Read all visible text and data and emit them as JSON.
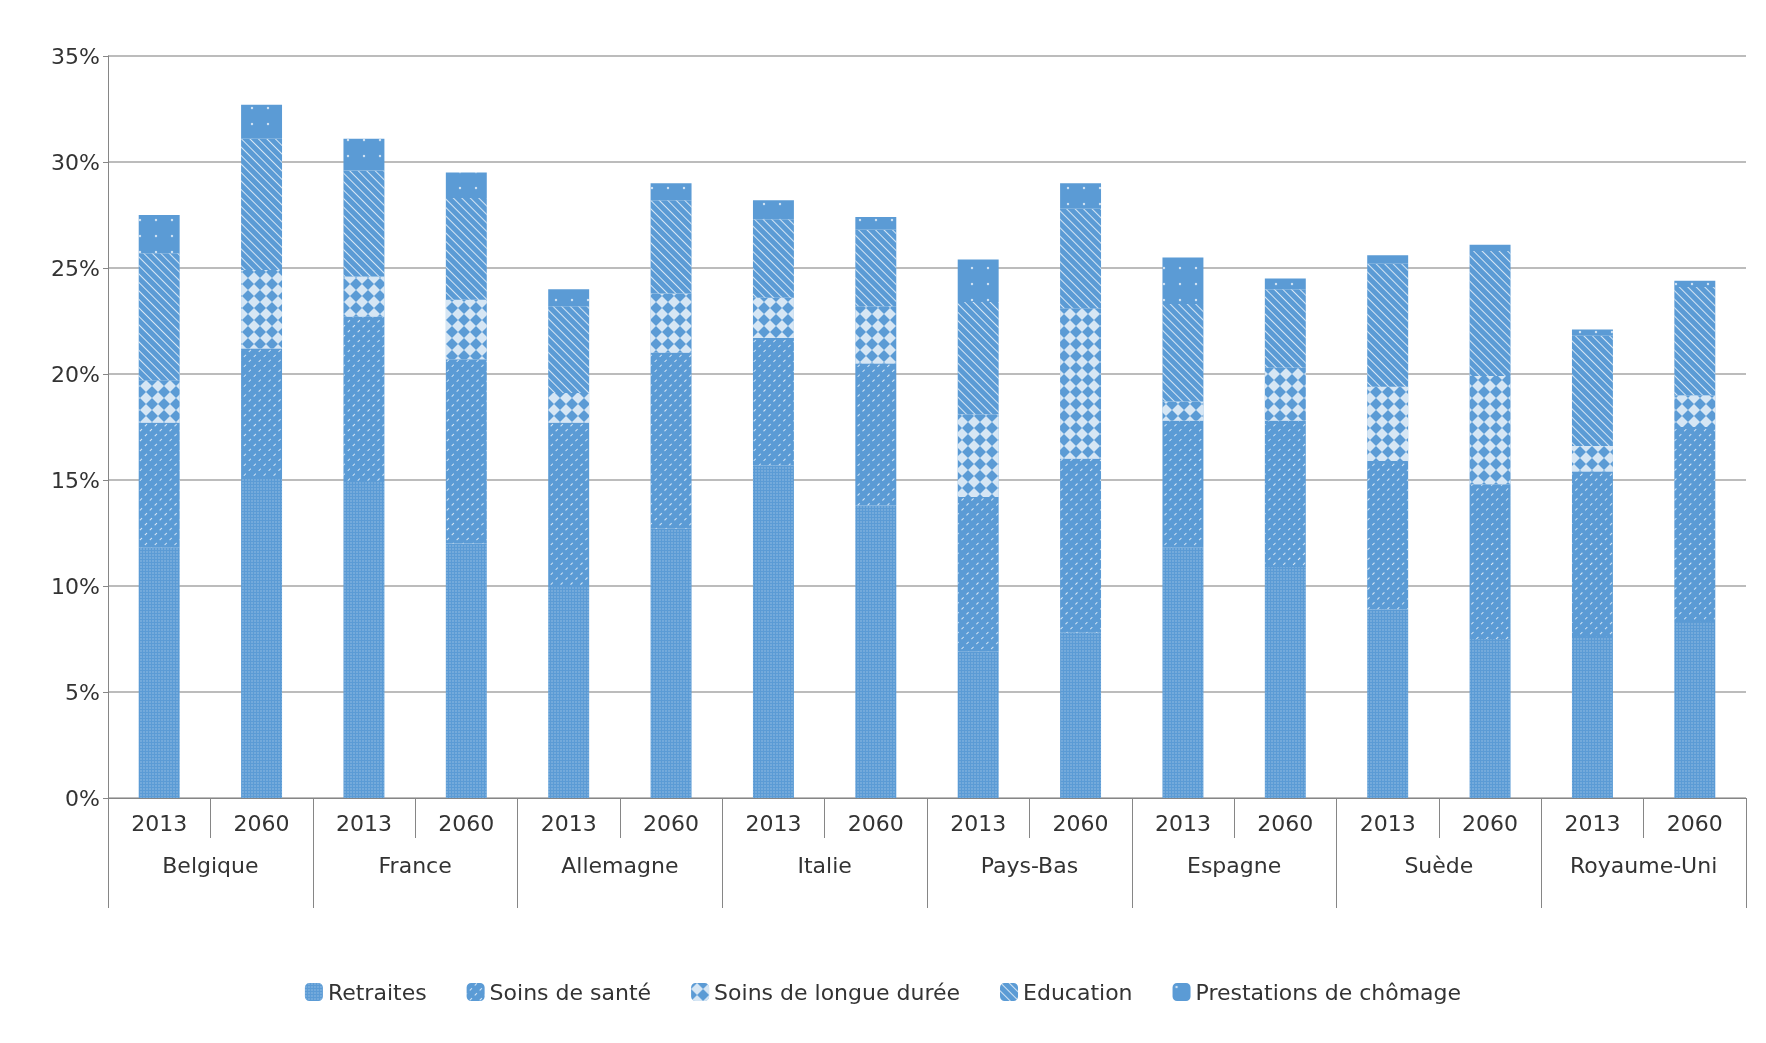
{
  "chart_data": {
    "type": "bar",
    "stacked": true,
    "categories": [
      "2013",
      "2060",
      "2013",
      "2060",
      "2013",
      "2060",
      "2013",
      "2060",
      "2013",
      "2060",
      "2013",
      "2060",
      "2013",
      "2060",
      "2013",
      "2060"
    ],
    "annotations": [
      "Belgique",
      "France",
      "Allemagne",
      "Italie",
      "Pays-Bas",
      "Espagne",
      "Suède",
      "Royaume-Uni"
    ],
    "series": [
      {
        "name": "Retraites",
        "color": "#5b9bd5",
        "values": [
          11.8,
          15.1,
          14.9,
          12.0,
          10.0,
          12.7,
          15.7,
          13.8,
          6.9,
          7.8,
          11.8,
          10.9,
          8.9,
          7.5,
          7.6,
          8.3
        ]
      },
      {
        "name": "Soins de santé",
        "color": "#5b9bd5",
        "values": [
          5.9,
          6.1,
          7.8,
          8.7,
          7.7,
          8.3,
          6.0,
          6.7,
          7.3,
          8.2,
          6.0,
          6.9,
          7.0,
          7.3,
          7.8,
          9.2
        ]
      },
      {
        "name": "Soins de longue durée",
        "color": "#5b9bd5",
        "values": [
          2.0,
          3.7,
          1.9,
          2.8,
          1.4,
          2.8,
          1.9,
          2.7,
          3.9,
          7.1,
          0.9,
          2.5,
          3.5,
          5.1,
          1.2,
          1.5
        ]
      },
      {
        "name": "Education",
        "color": "#5b9bd5",
        "values": [
          6.0,
          6.2,
          5.0,
          4.8,
          4.1,
          4.4,
          3.7,
          3.6,
          5.3,
          4.7,
          4.6,
          3.7,
          5.8,
          5.9,
          5.2,
          5.1
        ]
      },
      {
        "name": "Prestations de chômage",
        "color": "#5b9bd5",
        "values": [
          1.8,
          1.6,
          1.5,
          1.2,
          0.8,
          0.8,
          0.9,
          0.6,
          2.0,
          1.2,
          2.2,
          0.5,
          0.4,
          0.3,
          0.3,
          0.3
        ]
      }
    ],
    "ylim": [
      0,
      35
    ],
    "yticks": [
      {
        "value": 0,
        "label": "0%"
      },
      {
        "value": 5,
        "label": "5%"
      },
      {
        "value": 10,
        "label": "10%"
      },
      {
        "value": 15,
        "label": "15%"
      },
      {
        "value": 20,
        "label": "20%"
      },
      {
        "value": 25,
        "label": "25%"
      },
      {
        "value": 30,
        "label": "30%"
      },
      {
        "value": 35,
        "label": "35%"
      }
    ],
    "grid": "y",
    "legend": "bottom"
  }
}
